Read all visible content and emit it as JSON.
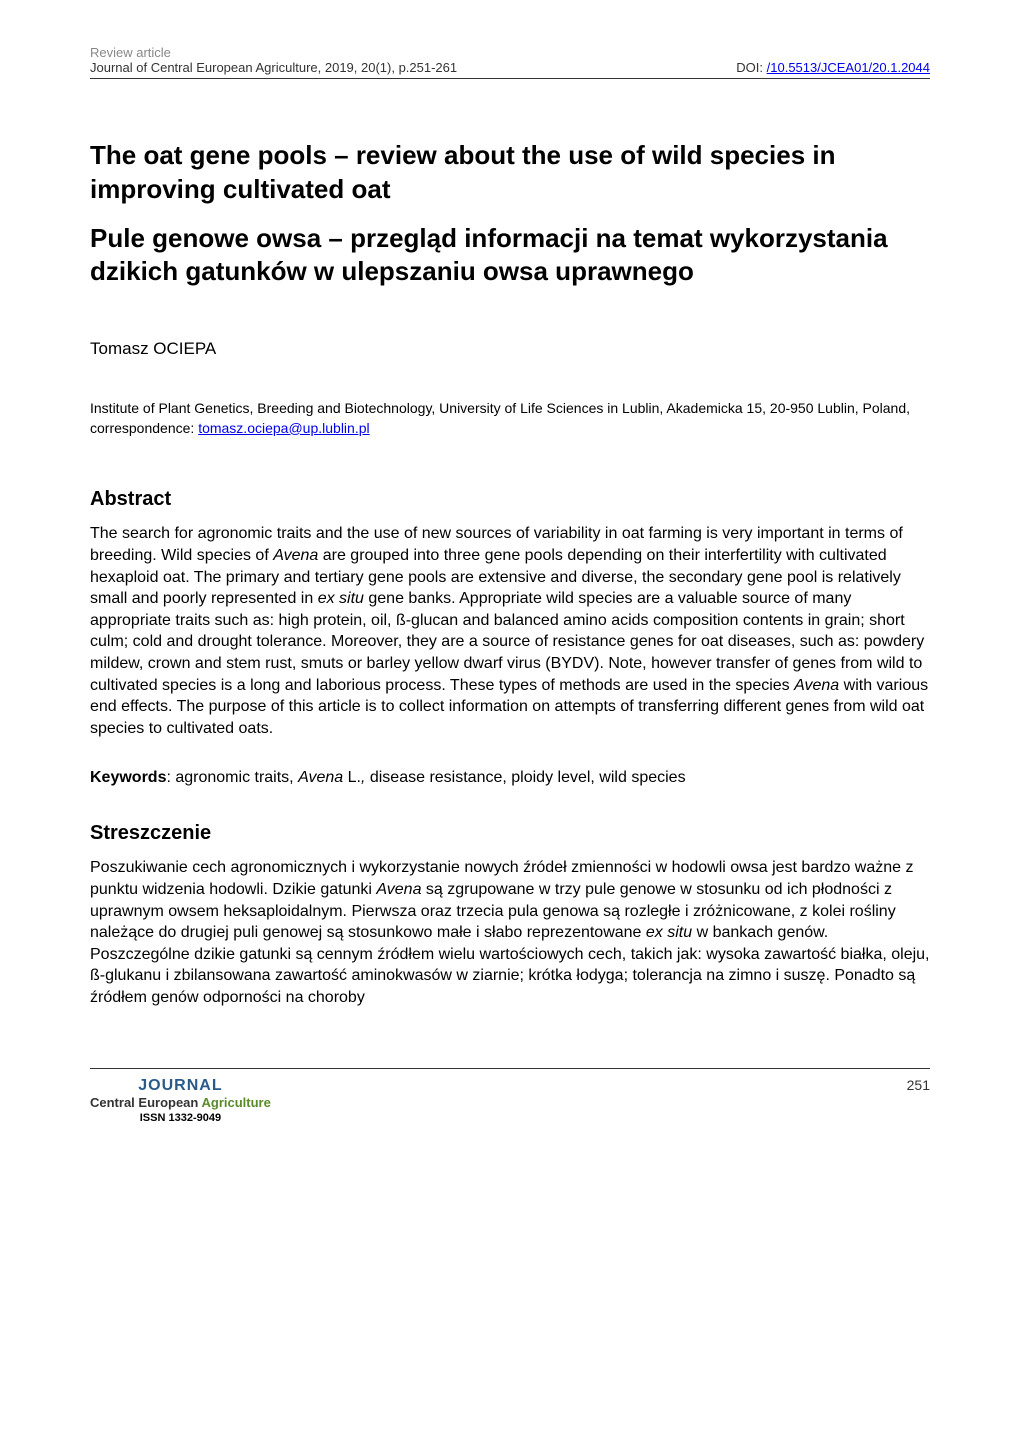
{
  "header": {
    "article_type": "Review article",
    "journal_info": "Journal of Central European Agriculture, 2019, 20(1), p.251-261",
    "doi_label": "DOI: ",
    "doi_link": "/10.5513/JCEA01/20.1.2044"
  },
  "title_en": "The oat gene pools – review about the use of wild species in improving cultivated oat",
  "title_pl": "Pule genowe owsa – przegląd informacji na temat wykorzystania dzikich gatunków w ulepszaniu owsa uprawnego",
  "author": "Tomasz OCIEPA",
  "affiliation_text": "Institute of Plant Genetics, Breeding and Biotechnology, University of Life Sciences in Lublin, Akademicka 15, 20-950 Lublin, Poland, correspondence: ",
  "affiliation_email": "tomasz.ociepa@up.lublin.pl",
  "abstract": {
    "heading": "Abstract",
    "text": "The search for agronomic traits and the use of new sources of variability in oat farming is very important in terms of breeding. Wild species of Avena are grouped into three gene pools depending on their interfertility with cultivated hexaploid oat. The primary and tertiary gene pools are extensive and diverse, the secondary gene pool is relatively small and poorly represented in ex situ gene banks. Appropriate wild species are a valuable source of many appropriate traits such as: high protein, oil, ß-glucan and balanced amino acids composition contents in grain; short culm; cold and drought tolerance. Moreover, they are a source of resistance genes for oat diseases, such as: powdery mildew, crown and stem rust, smuts or barley yellow dwarf virus (BYDV). Note, however transfer of genes from wild to cultivated species is a long and laborious process. These types of methods are used in the species Avena with various end effects. The purpose of this article is to collect information on attempts of transferring different genes from wild oat species to cultivated oats."
  },
  "keywords": {
    "label": "Keywords",
    "text": ": agronomic traits, Avena L., disease resistance, ploidy level, wild species"
  },
  "streszczenie": {
    "heading": "Streszczenie",
    "text": "Poszukiwanie cech agronomicznych i wykorzystanie nowych źródeł zmienności w hodowli owsa jest bardzo ważne z punktu widzenia hodowli. Dzikie gatunki Avena są zgrupowane w trzy pule genowe w stosunku od ich płodności z uprawnym owsem heksaploidalnym. Pierwsza oraz trzecia pula genowa są rozległe i zróżnicowane, z kolei rośliny należące do drugiej puli genowej są stosunkowo małe i słabo reprezentowane ex situ w bankach genów. Poszczególne dzikie gatunki są cennym źródłem wielu wartościowych cech, takich jak: wysoka zawartość białka, oleju, ß-glukanu i zbilansowana zawartość aminokwasów w ziarnie; krótka łodyga; tolerancja na zimno i suszę. Ponadto są źródłem genów odporności na choroby"
  },
  "footer": {
    "logo_journal": "JOURNAL",
    "logo_line1": "Central European",
    "logo_line1_green": " Agriculture",
    "logo_issn": "ISSN 1332-9049",
    "page_number": "251"
  },
  "colors": {
    "text": "#000000",
    "header_gray": "#888888",
    "link_blue": "#0000ee",
    "logo_blue": "#2a5a8a",
    "logo_green": "#5a8a2a",
    "border": "#333333",
    "background": "#ffffff"
  },
  "typography": {
    "body_fontsize": 16,
    "title_fontsize": 26,
    "heading_fontsize": 20,
    "header_fontsize": 13,
    "affiliation_fontsize": 14
  }
}
